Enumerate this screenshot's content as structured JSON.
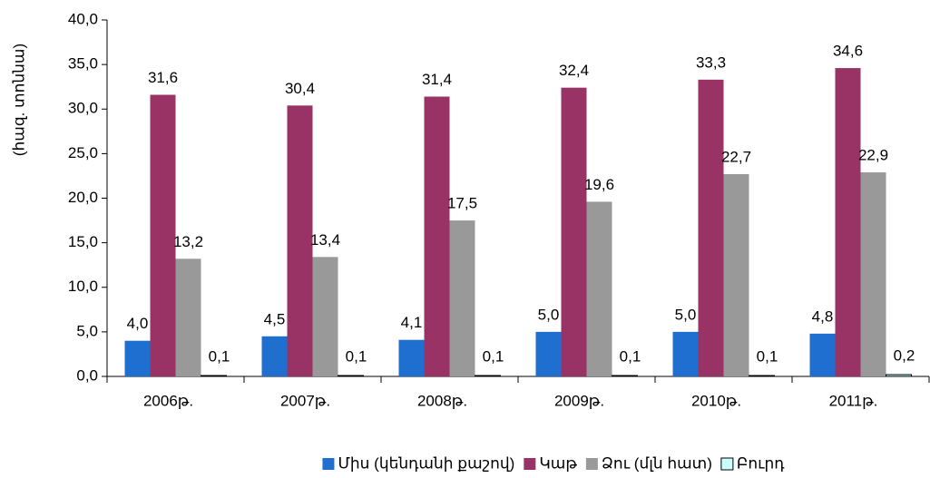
{
  "chart_data": {
    "type": "bar",
    "y_label": "(հազ. տոննա)",
    "categories": [
      "2006թ.",
      "2007թ.",
      "2008թ.",
      "2009թ.",
      "2010թ.",
      "2011թ."
    ],
    "series": [
      {
        "name": "Միս (կենդանի քաշով)",
        "color": "#1f6fd1",
        "values": [
          4.0,
          4.5,
          4.1,
          5.0,
          5.0,
          4.8
        ],
        "value_labels": [
          "4,0",
          "4,5",
          "4,1",
          "5,0",
          "5,0",
          "4,8"
        ]
      },
      {
        "name": "Կաթ",
        "color": "#993366",
        "values": [
          31.6,
          30.4,
          31.4,
          32.4,
          33.3,
          34.6
        ],
        "value_labels": [
          "31,6",
          "30,4",
          "31,4",
          "32,4",
          "33,3",
          "34,6"
        ]
      },
      {
        "name": "Ձու (մլն հատ)",
        "color": "#999999",
        "values": [
          13.2,
          13.4,
          17.5,
          19.6,
          22.7,
          22.9
        ],
        "value_labels": [
          "13,2",
          "13,4",
          "17,5",
          "19,6",
          "22,7",
          "22,9"
        ]
      },
      {
        "name": "Բուրդ",
        "color": "#ccffff",
        "values": [
          0.1,
          0.1,
          0.1,
          0.1,
          0.1,
          0.2
        ],
        "value_labels": [
          "0,1",
          "0,1",
          "0,1",
          "0,1",
          "0,1",
          "0,2"
        ]
      }
    ],
    "ylim": [
      0,
      40
    ],
    "yticks": [
      {
        "value": 0,
        "label": "0,0"
      },
      {
        "value": 5,
        "label": "5,0"
      },
      {
        "value": 10,
        "label": "10,0"
      },
      {
        "value": 15,
        "label": "15,0"
      },
      {
        "value": 20,
        "label": "20,0"
      },
      {
        "value": 25,
        "label": "25,0"
      },
      {
        "value": 30,
        "label": "30,0"
      },
      {
        "value": 35,
        "label": "35,0"
      },
      {
        "value": 40,
        "label": "40,0"
      }
    ],
    "legend": "bottom"
  }
}
